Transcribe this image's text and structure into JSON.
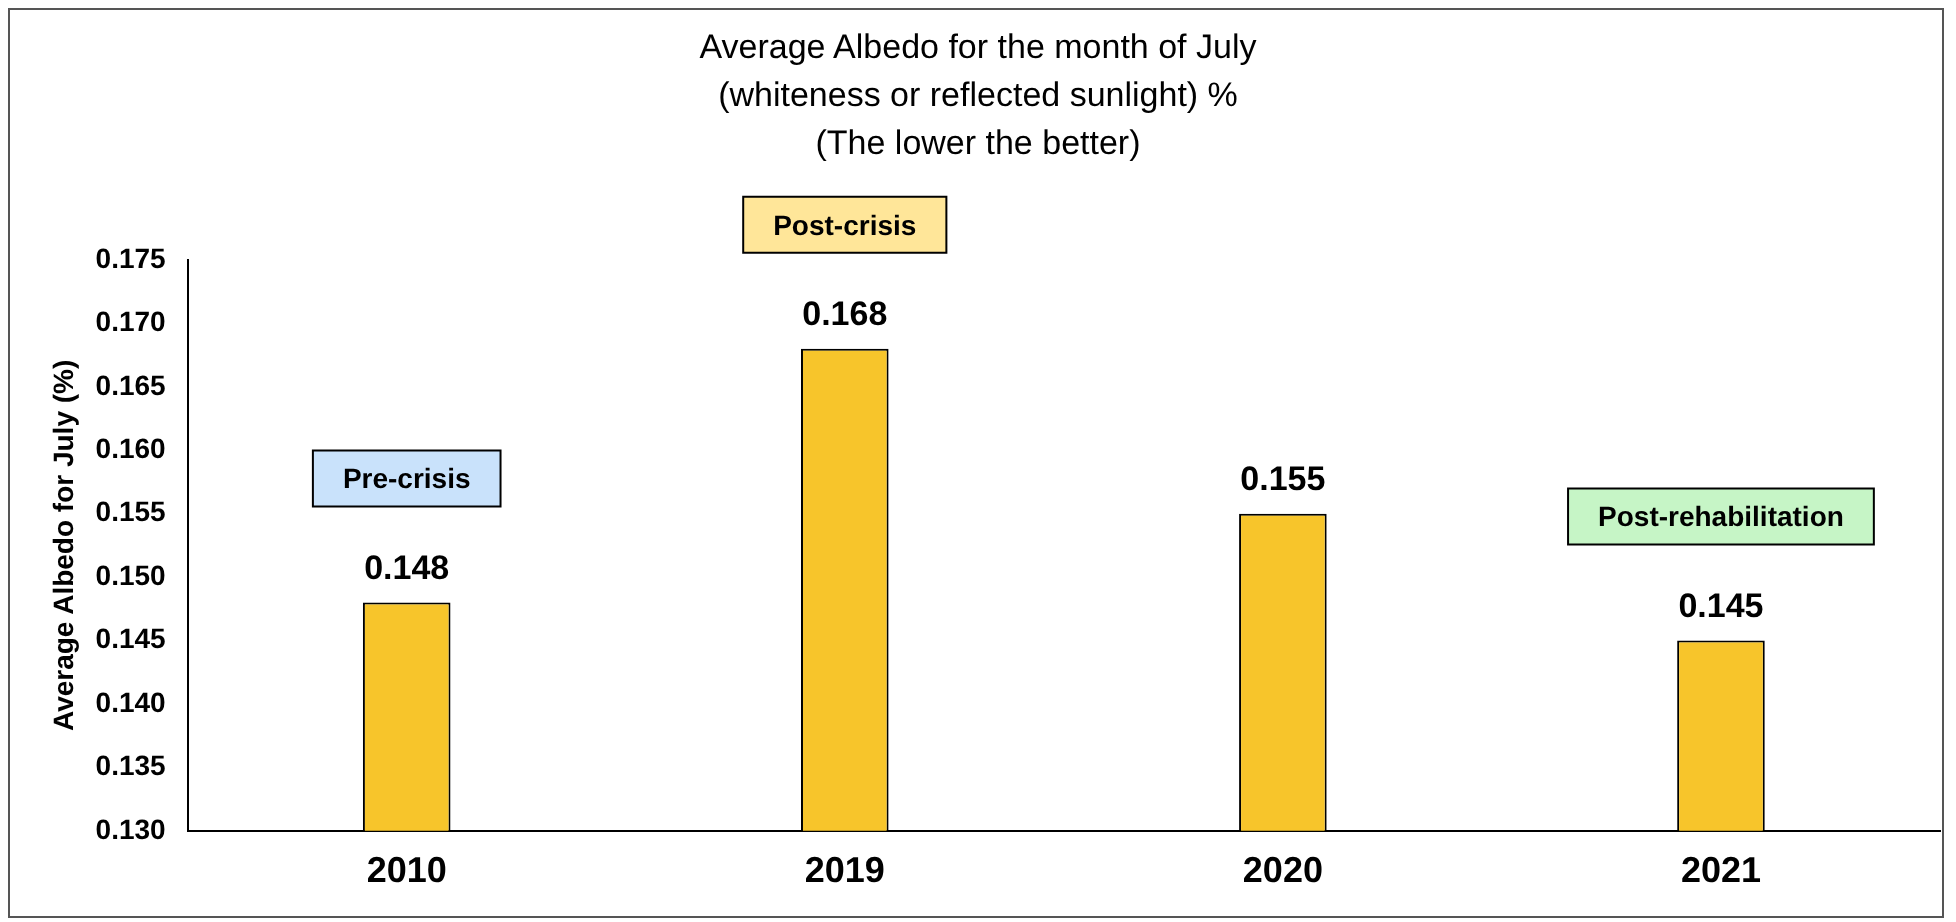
{
  "chart_data": {
    "type": "bar",
    "title": "Average Albedo for the month of July\n(whiteness or reflected sunlight) %",
    "subtitle": "(The lower the better)",
    "ylabel": "Average Albedo for July (%)",
    "categories": [
      "2010",
      "2019",
      "2020",
      "2021"
    ],
    "values": [
      0.148,
      0.168,
      0.155,
      0.145
    ],
    "color": "#f7c52b",
    "ylim": [
      0.13,
      0.175
    ],
    "yticks": [
      {
        "value": 0.13,
        "label": "0.130"
      },
      {
        "value": 0.135,
        "label": "0.135"
      },
      {
        "value": 0.14,
        "label": "0.140"
      },
      {
        "value": 0.145,
        "label": "0.145"
      },
      {
        "value": 0.15,
        "label": "0.150"
      },
      {
        "value": 0.155,
        "label": "0.155"
      },
      {
        "value": 0.16,
        "label": "0.160"
      },
      {
        "value": 0.165,
        "label": "0.165"
      },
      {
        "value": 0.17,
        "label": "0.170"
      },
      {
        "value": 0.175,
        "label": "0.175"
      }
    ],
    "grid": false,
    "legend": false,
    "data_labels": true,
    "annotations": [
      "Pre-crisis",
      "Post-crisis",
      "Post-rehabilitation"
    ]
  }
}
